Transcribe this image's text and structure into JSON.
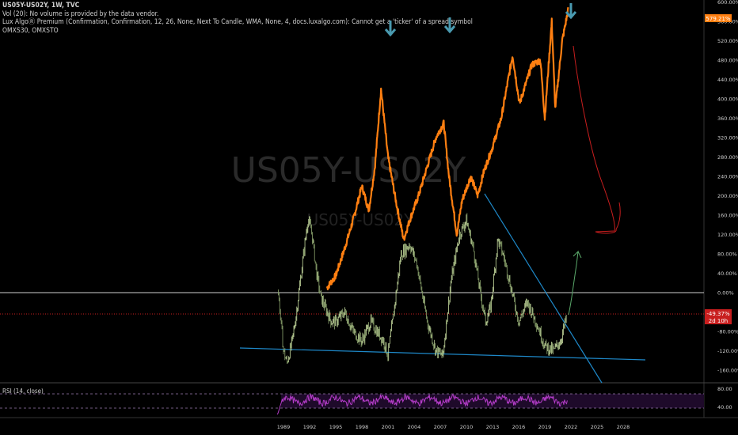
{
  "header": {
    "symbol_line": "US05Y-US02Y, 1W, TVC",
    "vol_line": "Vol (20): No volume is provided by the data vendor.",
    "lux_line": "Lux AlgoⓇ Premium (Confirmation, Confirmation, 12, 26, None, Next To Candle, WMA, None, 4, docs.luxalgo.com): Cannot get a 'ticker' of a spread symbol",
    "compare_line": "OMXS30, OMXSTO"
  },
  "watermark": {
    "main": "US05Y-US02Y",
    "secondary": "US05Y-US02Y"
  },
  "price_axis": {
    "labels": [
      "600.00%",
      "560.00%",
      "520.00%",
      "480.00%",
      "440.00%",
      "400.00%",
      "360.00%",
      "320.00%",
      "280.00%",
      "240.00%",
      "200.00%",
      "160.00%",
      "120.00%",
      "80.00%",
      "40.00%",
      "0.00%",
      "-80.00%",
      "-120.00%",
      "-160.00%"
    ],
    "current_orange": "579.21%",
    "current_red": "-49.37%",
    "countdown": "2d 10h"
  },
  "rsi": {
    "label": "RSI (14, close)",
    "axis_labels": [
      "80.00",
      "40.00"
    ]
  },
  "time_axis": {
    "labels": [
      "1989",
      "1992",
      "1995",
      "1998",
      "2001",
      "2004",
      "2007",
      "2010",
      "2013",
      "2016",
      "2019",
      "2022",
      "2025",
      "2028"
    ]
  },
  "colors": {
    "background": "#000000",
    "omx_line": "#ff7f11",
    "spread_candles": "#c8dda0",
    "trendline": "#1e88c8",
    "arrow": "#4a9ab0",
    "rsi_line": "#b43cc8",
    "rsi_band": "#1e0a2a",
    "projection_red": "#c81e1e",
    "projection_green": "#5aa86a"
  },
  "chart_data": [
    {
      "type": "line",
      "name": "OMXS30, OMXSTO",
      "x": [
        1994.0,
        1995.0,
        1996.0,
        1997.0,
        1998.0,
        1998.8,
        1999.5,
        2000.2,
        2001.0,
        2002.0,
        2002.8,
        2003.5,
        2004.5,
        2005.5,
        2006.5,
        2007.4,
        2008.0,
        2008.9,
        2009.5,
        2010.5,
        2011.3,
        2012.0,
        2013.0,
        2014.0,
        2015.3,
        2016.1,
        2017.5,
        2018.5,
        2019.0,
        2019.8,
        2020.2,
        2021.0,
        2021.7
      ],
      "y": [
        10,
        35,
        90,
        150,
        220,
        170,
        260,
        420,
        280,
        180,
        110,
        150,
        200,
        260,
        320,
        350,
        240,
        120,
        190,
        240,
        200,
        250,
        300,
        360,
        490,
        390,
        470,
        480,
        360,
        560,
        380,
        520,
        585
      ]
    },
    {
      "type": "line",
      "name": "US05Y-US02Y",
      "x": [
        1988.4,
        1989.0,
        1989.4,
        1990.0,
        1990.5,
        1991.3,
        1991.8,
        1992.2,
        1992.8,
        1993.3,
        1994.0,
        1994.5,
        1995.0,
        1996.0,
        1997.0,
        1998.0,
        1999.0,
        2000.5,
        2001.0,
        2001.8,
        2002.5,
        2003.5,
        2004.3,
        2005.5,
        2006.5,
        2007.3,
        2008.2,
        2009.2,
        2010.0,
        2010.8,
        2011.6,
        2012.2,
        2012.8,
        2013.6,
        2014.2,
        2015.0,
        2016.0,
        2017.0,
        2018.0,
        2018.6,
        2019.0,
        2020.0,
        2020.8,
        2021.5
      ],
      "y": [
        0,
        -120,
        -145,
        -100,
        -40,
        80,
        150,
        130,
        40,
        -10,
        -40,
        -60,
        -60,
        -40,
        -80,
        -100,
        -60,
        -100,
        -130,
        -20,
        80,
        100,
        60,
        -60,
        -120,
        -130,
        20,
        120,
        150,
        90,
        0,
        -60,
        -30,
        110,
        80,
        20,
        -60,
        -20,
        -60,
        -90,
        -110,
        -120,
        -100,
        -50
      ]
    },
    {
      "type": "line",
      "name": "RSI (14, close)",
      "ylim": [
        0,
        100
      ]
    }
  ]
}
